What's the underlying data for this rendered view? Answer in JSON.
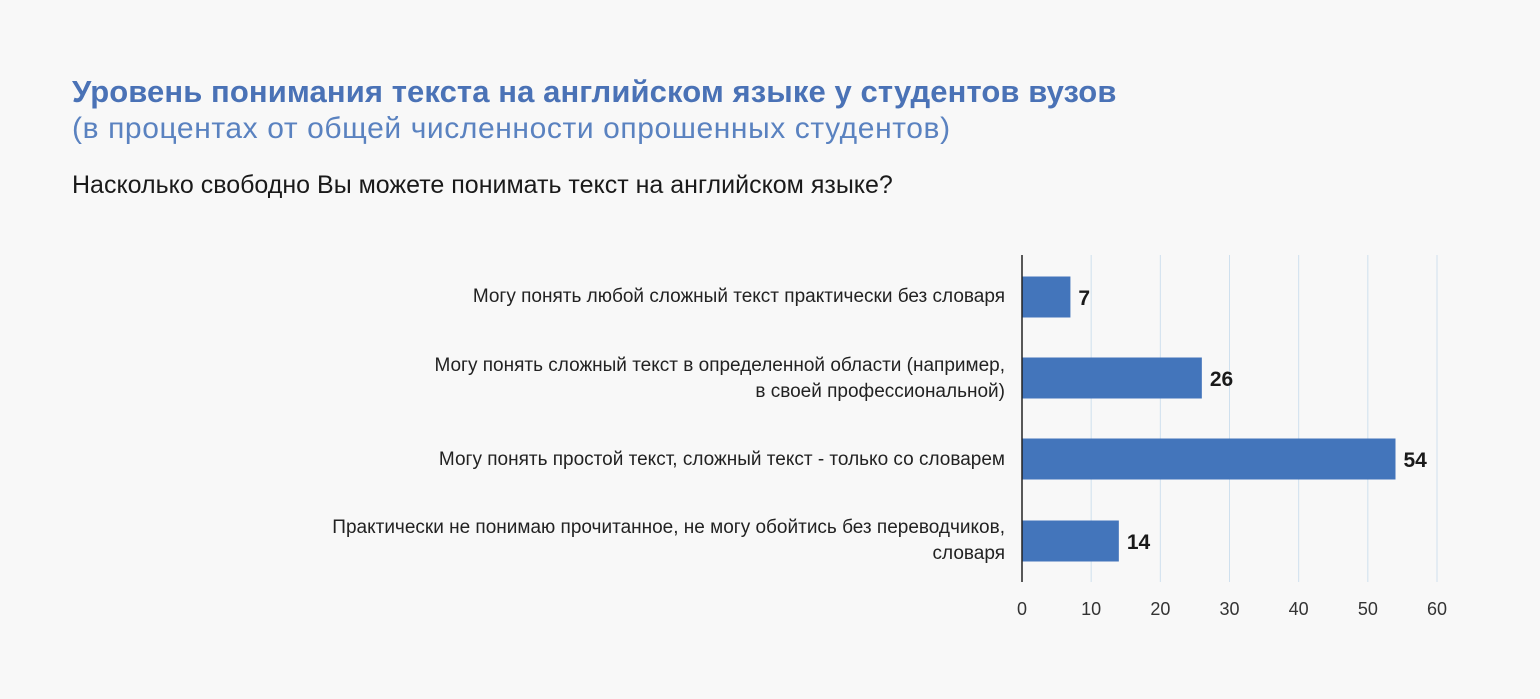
{
  "header": {
    "title": "Уровень понимания текста на английском языке у студентов вузов",
    "subtitle": "(в процентах от общей численности опрошенных студентов)",
    "question": "Насколько свободно Вы можете понимать текст на английском языке?"
  },
  "chart_data": {
    "type": "bar",
    "orientation": "horizontal",
    "categories": [
      "Могу понять любой сложный текст практически без словаря",
      "Могу понять сложный текст в определенной области (например,\nв своей профессиональной)",
      "Могу понять простой текст, сложный текст - только со словарем",
      "Практически не понимаю прочитанное, не могу обойтись без переводчиков,\nсловаря"
    ],
    "values": [
      7,
      26,
      54,
      14
    ],
    "xlim": [
      0,
      60
    ],
    "xticks": [
      "0",
      "10",
      "20",
      "30",
      "40",
      "50",
      "60"
    ],
    "grid": "vertical",
    "bar_color": "#4375bb",
    "grid_color": "#cfe0ee"
  }
}
